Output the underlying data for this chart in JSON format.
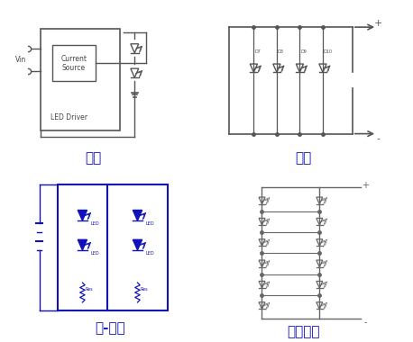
{
  "labels": [
    "串联",
    "并联",
    "串-并联",
    "交叉连接"
  ],
  "bg_color": "#ffffff",
  "line_color_dark": "#555555",
  "line_color_blue": "#1111bb",
  "led_fill_blue": "#1111dd",
  "text_color_blue": "#1111bb",
  "text_color_dark": "#444444",
  "fig_width": 4.58,
  "fig_height": 3.8,
  "dpi": 100
}
